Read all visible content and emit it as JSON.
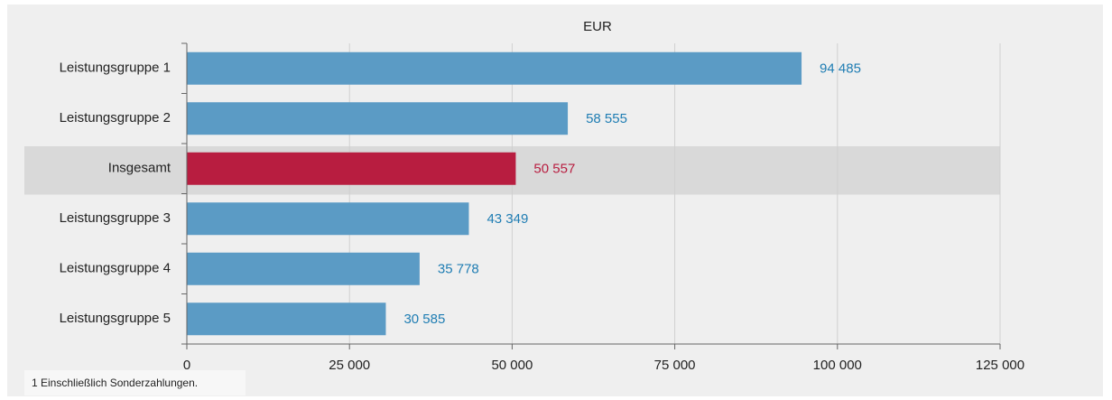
{
  "chart_data": {
    "type": "hbar",
    "axis_label": "EUR",
    "categories": [
      "Leistungsgruppe 1",
      "Leistungsgruppe 2",
      "Insgesamt",
      "Leistungsgruppe 3",
      "Leistungsgruppe 4",
      "Leistungsgruppe 5"
    ],
    "values": [
      94485,
      58555,
      50557,
      43349,
      35778,
      30585
    ],
    "value_labels": [
      "94 485",
      "58 555",
      "50 557",
      "43 349",
      "35 778",
      "30 585"
    ],
    "colors": [
      "#5b9bc5",
      "#5b9bc5",
      "#b81d40",
      "#5b9bc5",
      "#5b9bc5",
      "#5b9bc5"
    ],
    "label_colors": [
      "#1f7db3",
      "#1f7db3",
      "#b81d40",
      "#1f7db3",
      "#1f7db3",
      "#1f7db3"
    ],
    "highlight": 2,
    "xlim": [
      0,
      125000
    ],
    "xticks": [
      0,
      {
        "value": 25000,
        "label": "25 000"
      },
      {
        "value": 50000,
        "label": "50 000"
      },
      {
        "value": 75000,
        "label": "75 000"
      },
      {
        "value": 100000,
        "label": "100 000"
      },
      {
        "value": 125000,
        "label": "125 000"
      }
    ],
    "grid": true,
    "footnote": "1 Einschließlich Sonderzahlungen."
  }
}
